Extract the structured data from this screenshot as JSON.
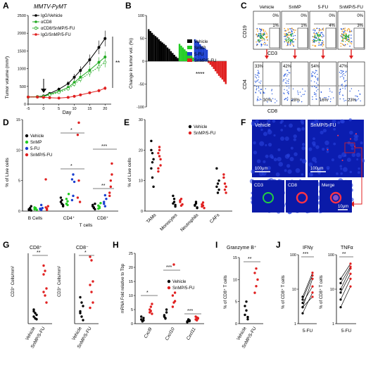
{
  "panels": {
    "A": {
      "label": "A",
      "title": "MMTV-PyMT",
      "ylabel": "Tumor volume (mm³)",
      "xlabel": "Day",
      "legend": [
        "IgG/Vehicle",
        "αCD8",
        "αCD8/SnMP/5-FU",
        "IgG/SnMP/5-FU"
      ],
      "sig": "**",
      "colors": [
        "#000000",
        "#22aa22",
        "#22aa22",
        "#e02020"
      ]
    },
    "B": {
      "label": "B",
      "ylabel": "Change in tumor vol. (%)",
      "sig": "****",
      "legend": [
        "Vehicle",
        "SnMP",
        "5-FU",
        "SnMP/5-FU"
      ],
      "colors": [
        "#000000",
        "#22cc22",
        "#1a3fd0",
        "#e02020"
      ]
    },
    "C": {
      "label": "C",
      "cols": [
        "Vehicle",
        "SnMP",
        "5-FU",
        "SnMP/5-FU"
      ],
      "top_y": "CD19",
      "top_x": "CD3",
      "bot_y": "CD4",
      "bot_x": "CD8",
      "top_q": [
        [
          "0%",
          "1%"
        ],
        [
          "0%",
          "1%"
        ],
        [
          "0%",
          "4%"
        ],
        [
          "0%",
          "3%"
        ]
      ],
      "bot_q": [
        [
          "33%",
          "30%"
        ],
        [
          "42%",
          "28%"
        ],
        [
          "54%",
          "16%"
        ],
        [
          "47%",
          "23%"
        ]
      ]
    },
    "D": {
      "label": "D",
      "ylabel": "% of Live cells",
      "legend": [
        "Vehicle",
        "SnMP",
        "5-FU",
        "SnMP/5-FU"
      ],
      "groups": [
        "B Cells",
        "CD4⁺",
        "CD8⁺"
      ],
      "sub": "T cells",
      "sigs": [
        "*",
        "*",
        "**",
        "***"
      ]
    },
    "E": {
      "label": "E",
      "ylabel": "% of Live cells",
      "legend": [
        "Vehicle",
        "SnMP/5-FU"
      ],
      "groups": [
        "TAMs",
        "Monocytes",
        "Neutrophils",
        "CAFs"
      ]
    },
    "F": {
      "label": "F",
      "top": [
        "Vehicle",
        "SnMP/5-FU"
      ],
      "scale1": "100μm",
      "scale2": "100μm",
      "bot": [
        "CD3",
        "CD8",
        "Merge"
      ],
      "scale3": "10μm"
    },
    "G": {
      "label": "G",
      "t1": "CD8⁺",
      "t2": "CD8⁻",
      "ylabel": "CD3⁺ Cells/mm²",
      "x": [
        "Vehicle",
        "SnMP/5-FU"
      ],
      "s1": "**",
      "s2": "*"
    },
    "H": {
      "label": "H",
      "ylabel": "mRNA Fold relative to Tbp",
      "legend": [
        "Vehicle",
        "SnMP/5-FU"
      ],
      "genes": [
        "Cxcl9",
        "Cxcl10",
        "Cxcl11"
      ],
      "sigs": [
        "*",
        "***",
        "***"
      ]
    },
    "I": {
      "label": "I",
      "title": "Granzyme B⁺",
      "ylabel": "% of CD8⁺ T cells",
      "x": [
        "Vehicle",
        "SnMP/5-FU"
      ],
      "sig": "**"
    },
    "J": {
      "label": "J",
      "t1": "IFNγ",
      "t2": "TNFα",
      "ylabel": "% of CD8⁺ T cells",
      "x": "5-FU",
      "s1": "***",
      "s2": "**"
    }
  },
  "chart_data": [
    {
      "panel": "A",
      "type": "line",
      "x": [
        -5,
        -2,
        0,
        2,
        5,
        8,
        10,
        12,
        15,
        18,
        20
      ],
      "xlim": [
        -5,
        22
      ],
      "ylim": [
        0,
        2500
      ],
      "xticks": [
        -5,
        0,
        5,
        10,
        15,
        20
      ],
      "yticks": [
        0,
        500,
        1000,
        1500,
        2000,
        2500
      ],
      "series": [
        {
          "name": "IgG/Vehicle",
          "values": [
            200,
            210,
            230,
            300,
            420,
            580,
            760,
            950,
            1250,
            1600,
            1850
          ]
        },
        {
          "name": "αCD8",
          "values": [
            200,
            210,
            220,
            280,
            360,
            470,
            610,
            760,
            960,
            1180,
            1330
          ]
        },
        {
          "name": "αCD8/SnMP/5-FU",
          "values": [
            200,
            200,
            210,
            260,
            330,
            430,
            560,
            700,
            880,
            1050,
            1180
          ]
        },
        {
          "name": "IgG/SnMP/5-FU",
          "values": [
            200,
            200,
            190,
            180,
            170,
            190,
            220,
            260,
            320,
            380,
            450
          ]
        }
      ]
    },
    {
      "panel": "B",
      "type": "bar",
      "ylim": [
        -100,
        100
      ],
      "yticks": [
        -100,
        -50,
        0,
        50,
        100
      ],
      "series": [
        {
          "name": "Vehicle",
          "values": [
            70,
            66,
            62,
            58,
            55,
            52,
            48,
            44,
            41,
            38,
            35,
            30,
            27,
            22,
            18,
            14,
            10,
            7
          ]
        },
        {
          "name": "SnMP",
          "values": [
            38,
            34,
            30,
            26,
            22,
            19,
            16,
            12,
            8
          ]
        },
        {
          "name": "5-FU",
          "values": [
            48,
            45,
            42,
            37,
            33,
            30,
            28,
            25
          ]
        },
        {
          "name": "SnMP/5-FU",
          "values": [
            -4,
            -8,
            -12,
            -17,
            -22,
            -27,
            -32,
            -36,
            -40,
            -45,
            -50
          ]
        }
      ]
    },
    {
      "panel": "D",
      "type": "scatter",
      "ylim": [
        0,
        15
      ],
      "yticks": [
        0,
        5,
        10,
        15
      ],
      "categories": [
        "B Cells",
        "CD4⁺",
        "CD8⁺"
      ],
      "series": [
        {
          "name": "Vehicle",
          "values": [
            [
              0.2,
              0.4,
              0.8,
              0.3,
              0.5,
              0.1
            ],
            [
              1.5,
              1.8,
              1.0,
              2.2,
              1.2,
              0.8
            ],
            [
              0.8,
              0.5,
              1.2,
              1.0,
              0.6,
              0.3
            ]
          ]
        },
        {
          "name": "SnMP",
          "values": [
            [
              0.3,
              0.5,
              0.2,
              0.6,
              0.4
            ],
            [
              1.2,
              1.6,
              2.8,
              2.0,
              1.0
            ],
            [
              0.9,
              0.5,
              1.3,
              0.4,
              0.7
            ]
          ]
        },
        {
          "name": "5-FU",
          "values": [
            [
              0.3,
              0.2,
              0.5,
              0.4,
              1.0
            ],
            [
              1.8,
              2.5,
              4.8,
              5.2,
              6.0
            ],
            [
              1.2,
              0.8,
              2.0,
              1.5,
              2.6
            ]
          ]
        },
        {
          "name": "SnMP/5-FU",
          "values": [
            [
              0.6,
              0.2,
              0.8,
              5.2,
              0.4
            ],
            [
              2.2,
              5.0,
              1.5,
              12.5,
              14.5
            ],
            [
              3.0,
              5.0,
              7.8,
              2.5,
              4.0,
              6.0
            ]
          ]
        }
      ]
    },
    {
      "panel": "E",
      "type": "scatter",
      "ylim": [
        0,
        30
      ],
      "yticks": [
        0,
        10,
        20,
        30
      ],
      "categories": [
        "TAMs",
        "Monocytes",
        "Neutrophils",
        "CAFs"
      ],
      "series": [
        {
          "name": "Vehicle",
          "values": [
            [
              23,
              19,
              17,
              14,
              11,
              8,
              20,
              16
            ],
            [
              5,
              3,
              2,
              2.5,
              4,
              1.5
            ],
            [
              2,
              3,
              1,
              1.8,
              2.5,
              1.2
            ],
            [
              14,
              9,
              7,
              8,
              6,
              10
            ]
          ]
        },
        {
          "name": "SnMP/5-FU",
          "values": [
            [
              19,
              21,
              15,
              13,
              18,
              17,
              14,
              20
            ],
            [
              3,
              4,
              2.2,
              3.5,
              1.8
            ],
            [
              1.5,
              2.8,
              1,
              2.2,
              1.8
            ],
            [
              11,
              9,
              8,
              12,
              7,
              6
            ]
          ]
        }
      ]
    },
    {
      "panel": "G",
      "type": "scatter",
      "ylim": [
        0,
        400
      ],
      "yticks": [
        0,
        100,
        200,
        300,
        400
      ],
      "categories": [
        "Vehicle",
        "SnMP/5-FU"
      ],
      "series": [
        {
          "name": "CD8⁺",
          "values": [
            [
              80,
              60,
              50,
              40,
              30,
              25,
              70
            ],
            [
              330,
              300,
              200,
              180,
              160,
              120,
              280
            ]
          ]
        },
        {
          "name": "CD8⁻",
          "values": [
            [
              150,
              120,
              100,
              70,
              40,
              20,
              60
            ],
            [
              380,
              360,
              240,
              220,
              180,
              120,
              90
            ]
          ]
        }
      ]
    },
    {
      "panel": "H",
      "type": "scatter",
      "ylim": [
        0,
        25
      ],
      "yticks": [
        0,
        5,
        10,
        15,
        20,
        25
      ],
      "categories": [
        "Cxcl9",
        "Cxcl10",
        "Cxcl11"
      ],
      "series": [
        {
          "name": "Vehicle",
          "values": [
            [
              1.5,
              1,
              2,
              2.5,
              0.8,
              1.2
            ],
            [
              3,
              2,
              4,
              2.5,
              1.8,
              5
            ],
            [
              0.8,
              1,
              1.2,
              0.5,
              1.5,
              0.9
            ]
          ]
        },
        {
          "name": "SnMP/5-FU",
          "values": [
            [
              4,
              6,
              3.5,
              5,
              4.5,
              7
            ],
            [
              10,
              21,
              8,
              6,
              7.5,
              11
            ],
            [
              1.5,
              2.2,
              1.8,
              2.5,
              1.2,
              2
            ]
          ]
        }
      ]
    },
    {
      "panel": "I",
      "type": "scatter",
      "ylim": [
        0,
        15
      ],
      "yticks": [
        0,
        5,
        10,
        15
      ],
      "categories": [
        "Vehicle",
        "SnMP/5-FU"
      ],
      "series": [
        {
          "name": "Granzyme B⁺",
          "values": [
            [
              2,
              3,
              1.5,
              4,
              5,
              1
            ],
            [
              7,
              8.5,
              10,
              11.5,
              12.5
            ]
          ]
        }
      ]
    },
    {
      "panel": "J",
      "type": "line",
      "ylim": [
        1,
        100
      ],
      "series": [
        {
          "name": "IFNγ",
          "pairs": [
            [
              3,
              20
            ],
            [
              5,
              25
            ],
            [
              2,
              8
            ],
            [
              6,
              30
            ],
            [
              4,
              12
            ],
            [
              3,
              6
            ]
          ]
        },
        {
          "name": "TNFα",
          "pairs": [
            [
              10,
              40
            ],
            [
              15,
              45
            ],
            [
              5,
              20
            ],
            [
              20,
              55
            ],
            [
              8,
              28
            ],
            [
              3,
              12
            ]
          ]
        }
      ]
    }
  ]
}
